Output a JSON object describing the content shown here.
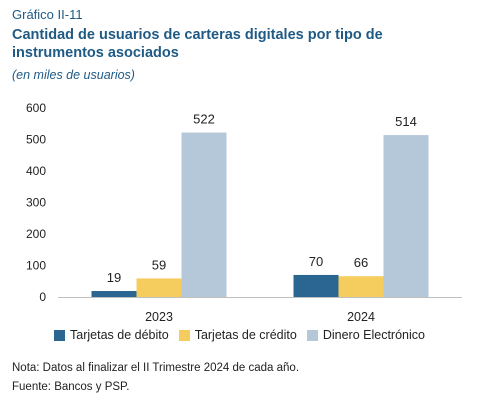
{
  "label": "Gráfico II-11",
  "title": "Cantidad de usuarios de carteras digitales por tipo de instrumentos asociados",
  "subtitle": "(en miles de usuarios)",
  "note": "Nota: Datos al finalizar el II Trimestre 2024 de cada año.",
  "source": "Fuente: Bancos y PSP.",
  "chart_data": {
    "type": "bar",
    "categories": [
      "2023",
      "2024"
    ],
    "series": [
      {
        "name": "Tarjetas de débito",
        "values": [
          19,
          70
        ],
        "color": "#2b6592"
      },
      {
        "name": "Tarjetas de crédito",
        "values": [
          59,
          66
        ],
        "color": "#f5cd5e"
      },
      {
        "name": "Dinero Electrónico",
        "values": [
          522,
          514
        ],
        "color": "#b5c8d9"
      }
    ],
    "ylim": [
      0,
      600
    ],
    "yticks": [
      0,
      100,
      200,
      300,
      400,
      500,
      600
    ],
    "grid": false,
    "legend": "bottom"
  }
}
